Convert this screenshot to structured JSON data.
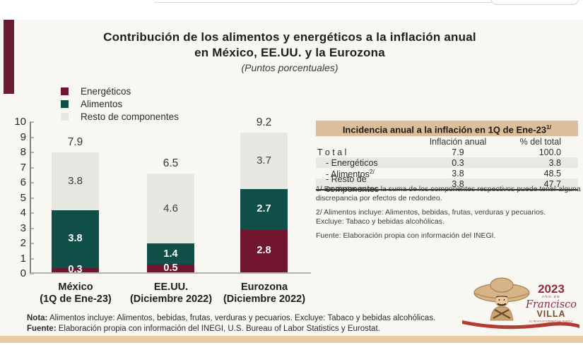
{
  "header": {
    "title_line1": "Contribución de los alimentos y energéticos a la inflación anual",
    "title_line2": "en México, EE.UU. y la Eurozona",
    "subtitle": "(Puntos porcentuales)"
  },
  "legend": {
    "items": [
      {
        "label": "Energéticos",
        "color": "#72162F"
      },
      {
        "label": "Alimentos",
        "color": "#0F4F47"
      },
      {
        "label": "Resto de componentes",
        "color": "#E8E8E2"
      }
    ]
  },
  "chart_data": {
    "type": "bar",
    "stacked": true,
    "title": "Contribución de los alimentos y energéticos a la inflación anual en México, EE.UU. y la Eurozona",
    "units": "Puntos porcentuales",
    "categories": [
      "México (1Q de Ene-23)",
      "EE.UU. (Diciembre 2022)",
      "Eurozona (Diciembre 2022)"
    ],
    "category_names": [
      "México",
      "EE.UU.",
      "Eurozona"
    ],
    "category_periods": [
      "(1Q de Ene-23)",
      "(Diciembre 2022)",
      "(Diciembre 2022)"
    ],
    "series": [
      {
        "name": "Energéticos",
        "color": "#72162F",
        "values": [
          0.3,
          0.5,
          2.8
        ],
        "labels": [
          "0.3",
          "0.5",
          "2.8"
        ]
      },
      {
        "name": "Alimentos",
        "color": "#0F4F47",
        "values": [
          3.8,
          1.4,
          2.7
        ],
        "labels": [
          "3.8",
          "1.4",
          "2.7"
        ]
      },
      {
        "name": "Resto de componentes",
        "color": "#E8E8E2",
        "values": [
          3.8,
          4.6,
          3.7
        ],
        "labels": [
          "3.8",
          "4.6",
          "3.7"
        ]
      }
    ],
    "totals": [
      7.9,
      6.5,
      9.2
    ],
    "totals_display": [
      "7.9",
      "6.5",
      "9.2"
    ],
    "ylim": [
      0,
      10
    ],
    "yticks": [
      0,
      1,
      2,
      3,
      4,
      5,
      6,
      7,
      8,
      9,
      10
    ],
    "grid": false,
    "legend_position": "top-left"
  },
  "table": {
    "title": "Incidencia anual a la inflación en 1Q de Ene-23",
    "title_sup": "1/",
    "columns": [
      "Inflación anual",
      "% del total"
    ],
    "rows": [
      {
        "label": "T o t a l",
        "sup": "",
        "inflacion": "7.9",
        "pct": "100.0"
      },
      {
        "label": "- Energéticos",
        "sup": "",
        "inflacion": "0.3",
        "pct": "3.8"
      },
      {
        "label": "- Alimentos",
        "sup": "2/",
        "inflacion": "3.8",
        "pct": "48.5"
      },
      {
        "label": "- Resto de componentes",
        "sup": "",
        "inflacion": "3.8",
        "pct": "47.7"
      }
    ],
    "footnote_1": "1/ En ciertos casos la suma de los componentes respectivos  puede tener alguna discrepancia por efectos de redondeo.",
    "footnote_2_line1": "2/ Alimentos incluye: Alimentos, bebidas, frutas, verduras y pecuarios.",
    "footnote_2_line2": "Excluye: Tabaco y bebidas alcohólicas.",
    "source": "Fuente: Elaboración propia con información del INEGI."
  },
  "footer": {
    "nota_label": "Nota:",
    "nota_text": " Alimentos incluye: Alimentos, bebidas, frutas, verduras y pecuarios. Excluye: Tabaco y bebidas alcohólicas.",
    "fuente_label": "Fuente:",
    "fuente_text": " Elaboración propia con información del INEGI, U.S. Bureau of Labor Statistics y Eurostat."
  },
  "logo": {
    "year": "2023",
    "small_text": "AÑO DE",
    "name": "Francisco",
    "surname": "VILLA",
    "tagline": "EL REVOLUCIONARIO DEL PUEBLO"
  },
  "colors": {
    "slide_background": "#F9F7F1",
    "accent_maroon": "#6B1D33",
    "table_header_tan": "#DCBF9A",
    "table_stripe_gray": "#E9E9E4",
    "bottom_bar_tan": "#E6CBA3",
    "energeticos": "#72162F",
    "alimentos": "#0F4F47",
    "resto_componentes": "#E8E8E2",
    "logo_maroon": "#8E2B3F",
    "ribbon_red": "#B23B34"
  }
}
